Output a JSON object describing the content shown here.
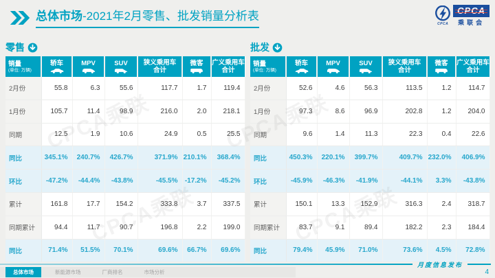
{
  "title": {
    "emphasis": "总体市场",
    "rest": "-2021年2月零售、批发销量分析表"
  },
  "logo": {
    "acronym": "CPCA",
    "cn": "乘联会",
    "emblem_small_text": "CPCA"
  },
  "colors": {
    "accent": "#00a2c2",
    "highlight_bg": "#e4f2f9",
    "highlight_text": "#27a7cc",
    "logo_blue": "#1a4e9e",
    "logo_red": "#e8402a",
    "slide_bg": "#efefed"
  },
  "watermark": "CPCA乘联",
  "columns": [
    {
      "name": "销量",
      "sub": "(单位: 万辆)"
    },
    {
      "name": "轿车",
      "icon": "sedan-icon"
    },
    {
      "name": "MPV",
      "icon": "mpv-icon"
    },
    {
      "name": "SUV",
      "icon": "suv-icon"
    },
    {
      "name": "狭义乘用车",
      "line2": "合计"
    },
    {
      "name": "微客",
      "icon": "microvan-icon"
    },
    {
      "name": "广义乘用车",
      "line2": "合计"
    }
  ],
  "tables": {
    "retail": {
      "title": "零售",
      "icon": "down-arrow-circle-icon",
      "rows": [
        {
          "label": "2月份",
          "values": [
            "55.8",
            "6.3",
            "55.6",
            "117.7",
            "1.7",
            "119.4"
          ],
          "highlight": false
        },
        {
          "label": "1月份",
          "values": [
            "105.7",
            "11.4",
            "98.9",
            "216.0",
            "2.0",
            "218.1"
          ],
          "highlight": false
        },
        {
          "label": "同期",
          "values": [
            "12.5",
            "1.9",
            "10.6",
            "24.9",
            "0.5",
            "25.5"
          ],
          "highlight": false
        },
        {
          "label": "同比",
          "values": [
            "345.1%",
            "240.7%",
            "426.7%",
            "371.9%",
            "210.1%",
            "368.4%"
          ],
          "highlight": true
        },
        {
          "label": "环比",
          "values": [
            "-47.2%",
            "-44.4%",
            "-43.8%",
            "-45.5%",
            "-17.2%",
            "-45.2%"
          ],
          "highlight": true
        },
        {
          "label": "累计",
          "values": [
            "161.8",
            "17.7",
            "154.2",
            "333.8",
            "3.7",
            "337.5"
          ],
          "highlight": false
        },
        {
          "label": "同期累计",
          "values": [
            "94.4",
            "11.7",
            "90.7",
            "196.8",
            "2.2",
            "199.0"
          ],
          "highlight": false
        },
        {
          "label": "同比",
          "values": [
            "71.4%",
            "51.5%",
            "70.1%",
            "69.6%",
            "66.7%",
            "69.6%"
          ],
          "highlight": true
        }
      ]
    },
    "wholesale": {
      "title": "批发",
      "icon": "down-arrow-circle-icon",
      "rows": [
        {
          "label": "2月份",
          "values": [
            "52.6",
            "4.6",
            "56.3",
            "113.5",
            "1.2",
            "114.7"
          ],
          "highlight": false
        },
        {
          "label": "1月份",
          "values": [
            "97.3",
            "8.6",
            "96.9",
            "202.8",
            "1.2",
            "204.0"
          ],
          "highlight": false
        },
        {
          "label": "同期",
          "values": [
            "9.6",
            "1.4",
            "11.3",
            "22.3",
            "0.4",
            "22.6"
          ],
          "highlight": false
        },
        {
          "label": "同比",
          "values": [
            "450.3%",
            "220.1%",
            "399.7%",
            "409.7%",
            "232.0%",
            "406.9%"
          ],
          "highlight": true
        },
        {
          "label": "环比",
          "values": [
            "-45.9%",
            "-46.3%",
            "-41.9%",
            "-44.1%",
            "3.3%",
            "-43.8%"
          ],
          "highlight": true
        },
        {
          "label": "累计",
          "values": [
            "150.1",
            "13.3",
            "152.9",
            "316.3",
            "2.4",
            "318.7"
          ],
          "highlight": false
        },
        {
          "label": "同期累计",
          "values": [
            "83.7",
            "9.1",
            "89.4",
            "182.2",
            "2.3",
            "184.4"
          ],
          "highlight": false
        },
        {
          "label": "同比",
          "values": [
            "79.4%",
            "45.9%",
            "71.0%",
            "73.6%",
            "4.5%",
            "72.8%"
          ],
          "highlight": true
        }
      ]
    }
  },
  "footer": {
    "publish_label": "月度信息发布",
    "page": "4",
    "tabs": [
      {
        "label": "总体市场",
        "name": "overall-market",
        "active": true
      },
      {
        "label": "新能源市场",
        "name": "nev-market",
        "active": false
      },
      {
        "label": "厂商排名",
        "name": "oem-ranking",
        "active": false
      },
      {
        "label": "市场分析",
        "name": "market-analysis",
        "active": false
      }
    ]
  }
}
